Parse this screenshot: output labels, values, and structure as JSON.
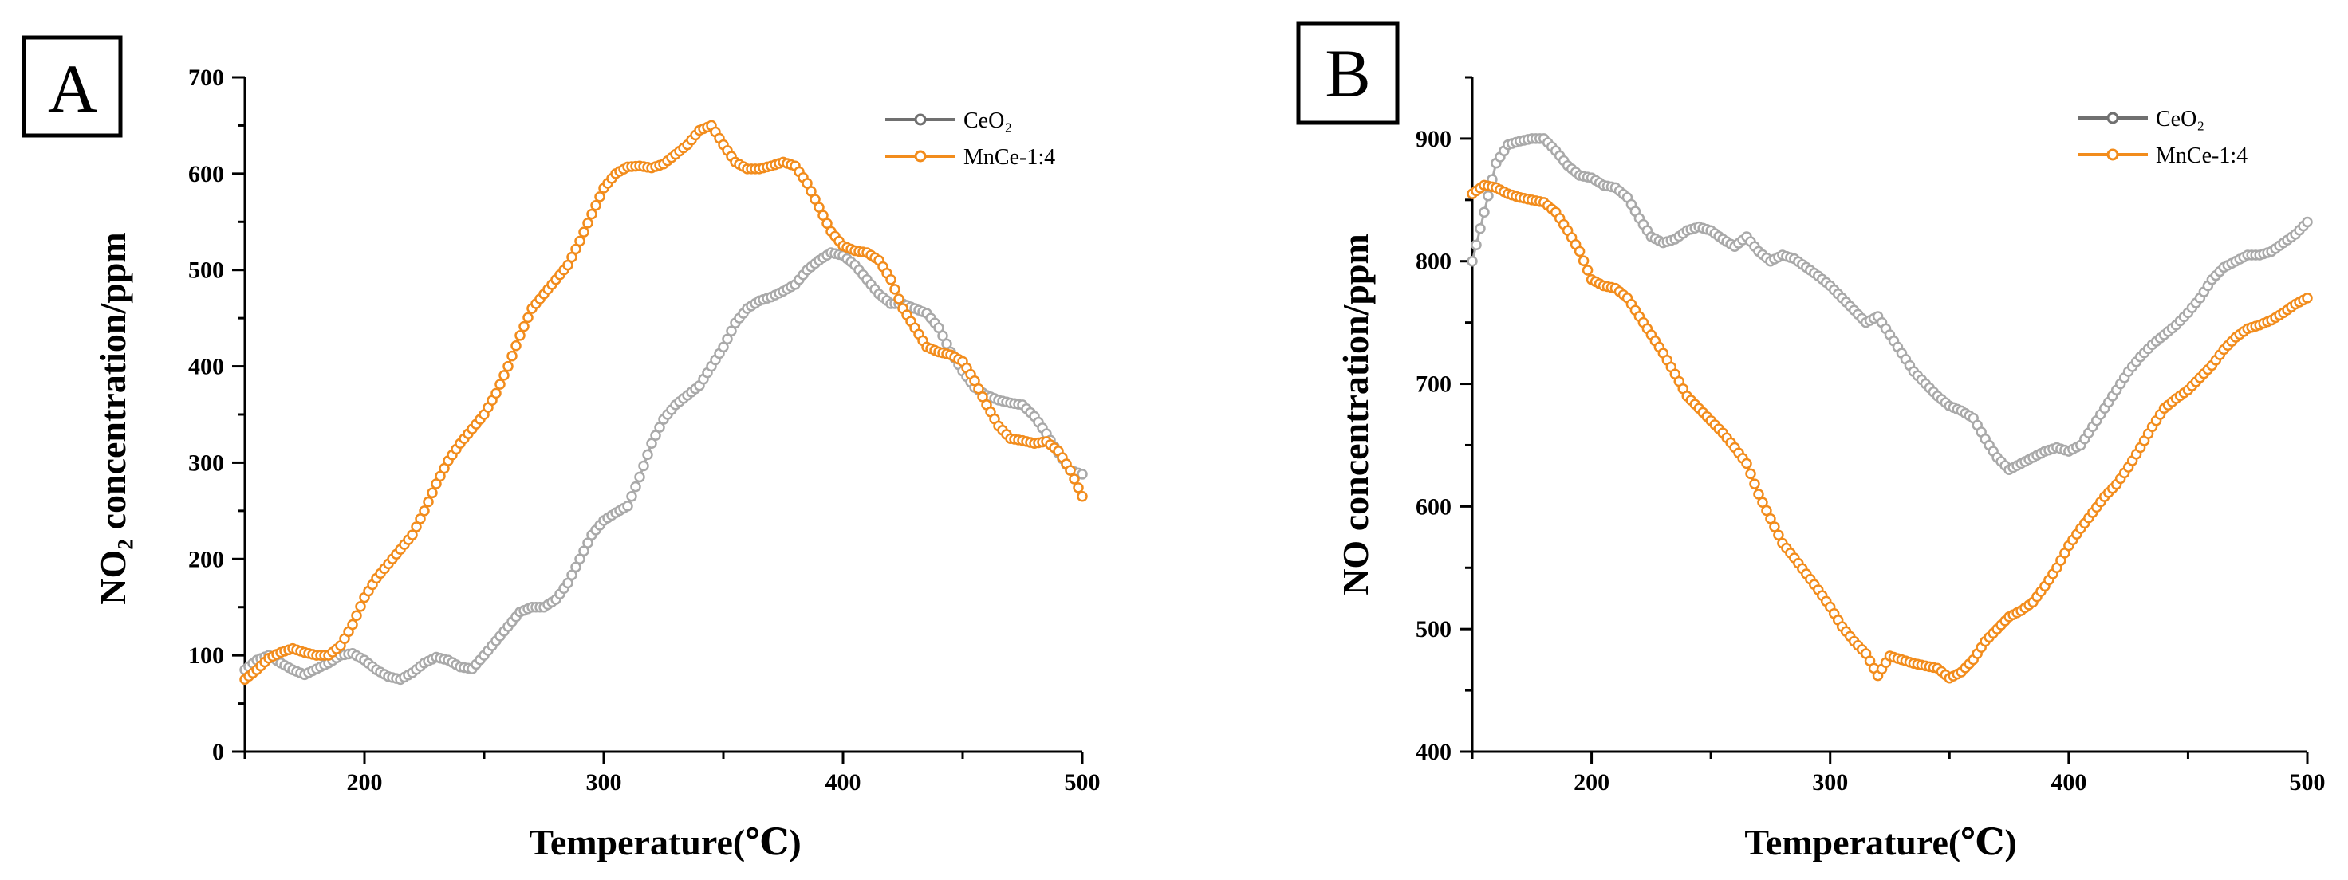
{
  "chart_data": [
    {
      "panel": "A",
      "type": "line",
      "xlabel": "Temperature(℃)",
      "ylabel": "NO₂ concentration/ppm",
      "xlim": [
        150,
        500
      ],
      "ylim": [
        0,
        700
      ],
      "xticks": [
        200,
        300,
        400,
        500
      ],
      "yticks": [
        0,
        100,
        200,
        300,
        400,
        500,
        600,
        700
      ],
      "legend_position": "top-right",
      "grid": false,
      "series": [
        {
          "name": "CeO₂",
          "color": "#a9a9a9",
          "x": [
            150,
            155,
            160,
            165,
            170,
            175,
            180,
            185,
            190,
            195,
            200,
            205,
            210,
            215,
            220,
            225,
            230,
            235,
            240,
            245,
            250,
            255,
            260,
            265,
            270,
            275,
            280,
            285,
            290,
            295,
            300,
            305,
            310,
            315,
            320,
            325,
            330,
            335,
            340,
            345,
            350,
            355,
            360,
            365,
            370,
            375,
            380,
            385,
            390,
            395,
            400,
            405,
            410,
            415,
            420,
            425,
            430,
            435,
            440,
            445,
            450,
            455,
            460,
            465,
            470,
            475,
            480,
            485,
            490,
            495,
            500
          ],
          "values": [
            85,
            95,
            100,
            92,
            85,
            80,
            86,
            92,
            100,
            102,
            95,
            85,
            78,
            75,
            82,
            92,
            98,
            95,
            88,
            86,
            100,
            115,
            130,
            145,
            150,
            150,
            158,
            175,
            200,
            225,
            240,
            248,
            255,
            285,
            320,
            345,
            360,
            370,
            380,
            400,
            420,
            445,
            460,
            468,
            472,
            478,
            485,
            500,
            510,
            518,
            515,
            505,
            490,
            475,
            465,
            465,
            460,
            455,
            440,
            415,
            395,
            378,
            370,
            365,
            362,
            360,
            348,
            330,
            310,
            292,
            288
          ]
        },
        {
          "name": "MnCe-1:4",
          "color": "#f28c1c",
          "x": [
            150,
            155,
            160,
            165,
            170,
            175,
            180,
            185,
            190,
            195,
            200,
            205,
            210,
            215,
            220,
            225,
            230,
            235,
            240,
            245,
            250,
            255,
            260,
            265,
            270,
            275,
            280,
            285,
            290,
            295,
            300,
            305,
            310,
            315,
            320,
            325,
            330,
            335,
            340,
            345,
            350,
            355,
            360,
            365,
            370,
            375,
            380,
            385,
            390,
            395,
            400,
            405,
            410,
            415,
            420,
            425,
            430,
            435,
            440,
            445,
            450,
            455,
            460,
            465,
            470,
            475,
            480,
            485,
            490,
            495,
            500
          ],
          "values": [
            75,
            85,
            97,
            103,
            107,
            103,
            100,
            100,
            110,
            132,
            160,
            180,
            195,
            210,
            225,
            250,
            278,
            302,
            320,
            335,
            350,
            372,
            400,
            432,
            460,
            475,
            490,
            505,
            530,
            558,
            585,
            600,
            607,
            608,
            606,
            610,
            620,
            630,
            645,
            650,
            630,
            612,
            605,
            605,
            608,
            612,
            608,
            590,
            565,
            540,
            525,
            520,
            518,
            510,
            490,
            460,
            440,
            420,
            415,
            412,
            405,
            385,
            360,
            338,
            325,
            323,
            320,
            322,
            312,
            292,
            265
          ]
        }
      ]
    },
    {
      "panel": "B",
      "type": "line",
      "xlabel": "Temperature(℃)",
      "ylabel": "NO concentration/ppm",
      "xlim": [
        150,
        500
      ],
      "ylim": [
        400,
        950
      ],
      "xticks": [
        200,
        300,
        400,
        500
      ],
      "yticks": [
        400,
        500,
        600,
        700,
        800,
        900
      ],
      "legend_position": "top-right",
      "grid": false,
      "series": [
        {
          "name": "CeO₂",
          "color": "#a9a9a9",
          "x": [
            150,
            155,
            160,
            165,
            170,
            175,
            180,
            185,
            190,
            195,
            200,
            205,
            210,
            215,
            220,
            225,
            230,
            235,
            240,
            245,
            250,
            255,
            260,
            265,
            270,
            275,
            280,
            285,
            290,
            295,
            300,
            305,
            310,
            315,
            320,
            325,
            330,
            335,
            340,
            345,
            350,
            355,
            360,
            365,
            370,
            375,
            380,
            385,
            390,
            395,
            400,
            405,
            410,
            415,
            420,
            425,
            430,
            435,
            440,
            445,
            450,
            455,
            460,
            465,
            470,
            475,
            480,
            485,
            490,
            495,
            500
          ],
          "values": [
            800,
            840,
            880,
            895,
            898,
            900,
            900,
            890,
            878,
            870,
            868,
            862,
            860,
            852,
            835,
            820,
            815,
            818,
            825,
            828,
            825,
            818,
            812,
            820,
            808,
            800,
            805,
            802,
            795,
            788,
            780,
            770,
            760,
            750,
            755,
            740,
            725,
            710,
            700,
            690,
            682,
            678,
            672,
            655,
            640,
            630,
            635,
            640,
            645,
            648,
            645,
            650,
            665,
            680,
            695,
            710,
            722,
            732,
            740,
            748,
            758,
            770,
            785,
            795,
            800,
            805,
            805,
            808,
            815,
            822,
            832
          ]
        },
        {
          "name": "MnCe-1:4",
          "color": "#f28c1c",
          "x": [
            150,
            155,
            160,
            165,
            170,
            175,
            180,
            185,
            190,
            195,
            200,
            205,
            210,
            215,
            220,
            225,
            230,
            235,
            240,
            245,
            250,
            255,
            260,
            265,
            270,
            275,
            280,
            285,
            290,
            295,
            300,
            305,
            310,
            315,
            320,
            325,
            330,
            335,
            340,
            345,
            350,
            355,
            360,
            365,
            370,
            375,
            380,
            385,
            390,
            395,
            400,
            405,
            410,
            415,
            420,
            425,
            430,
            435,
            440,
            445,
            450,
            455,
            460,
            465,
            470,
            475,
            480,
            485,
            490,
            495,
            500
          ],
          "values": [
            855,
            862,
            860,
            855,
            852,
            850,
            848,
            840,
            825,
            808,
            785,
            780,
            778,
            770,
            755,
            740,
            725,
            708,
            690,
            680,
            670,
            660,
            648,
            635,
            610,
            590,
            570,
            558,
            545,
            532,
            518,
            502,
            490,
            480,
            462,
            478,
            475,
            472,
            470,
            468,
            460,
            465,
            475,
            490,
            500,
            510,
            515,
            522,
            535,
            550,
            568,
            582,
            595,
            608,
            618,
            632,
            648,
            665,
            680,
            688,
            695,
            705,
            715,
            728,
            738,
            745,
            748,
            752,
            758,
            765,
            770
          ]
        }
      ]
    }
  ]
}
